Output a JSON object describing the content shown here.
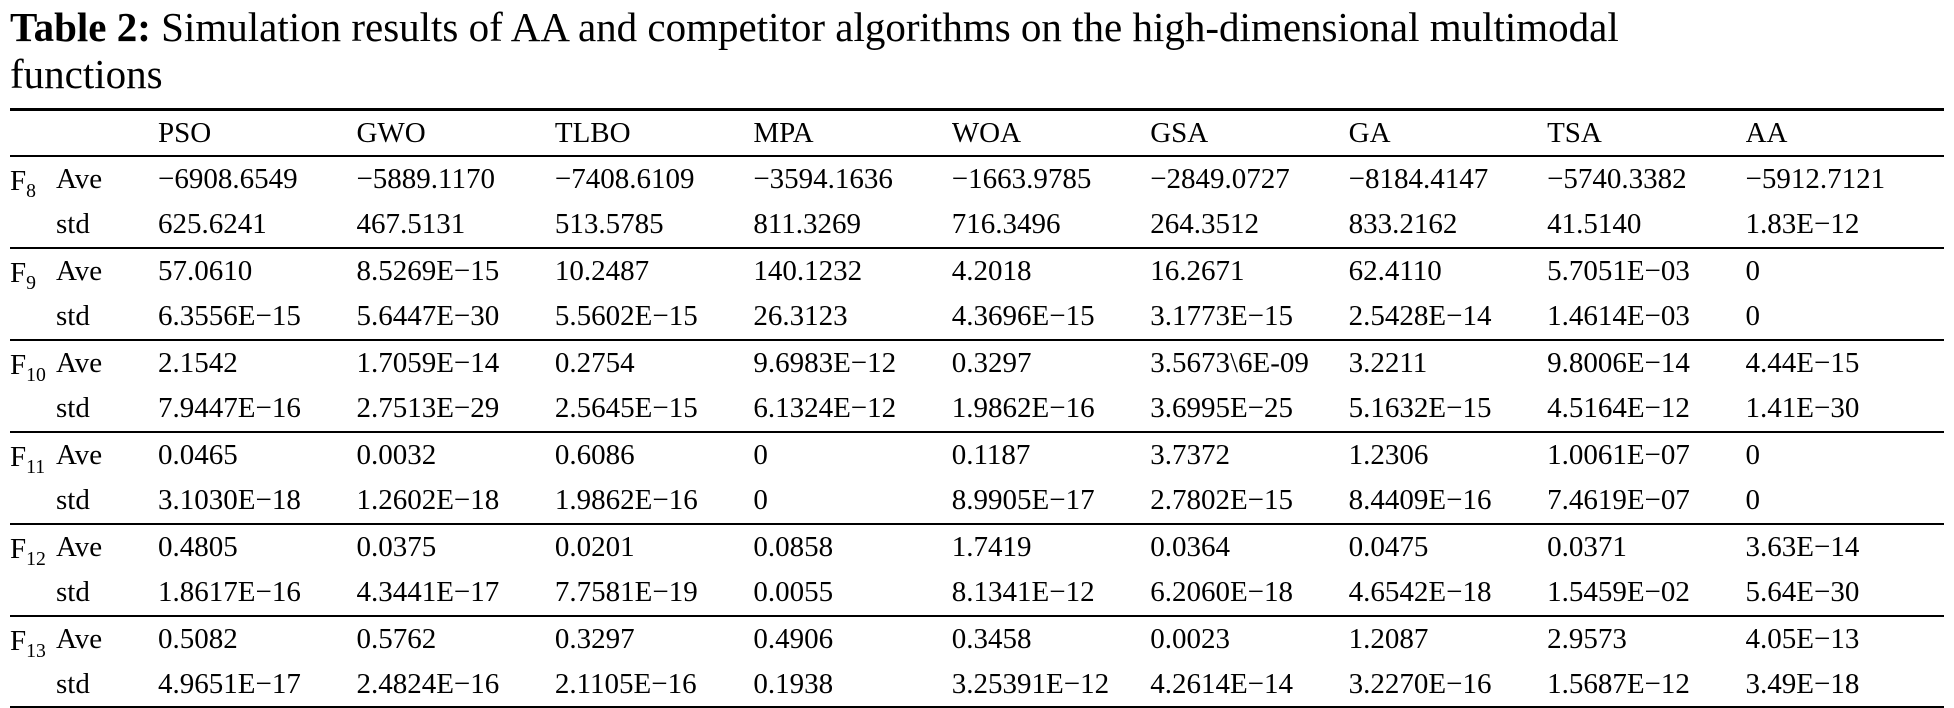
{
  "colors": {
    "text": "#000000",
    "background": "#ffffff",
    "rule": "#000000"
  },
  "caption": {
    "label": "Table 2:",
    "line1": " Simulation results of AA and competitor algorithms on the high-dimensional multimodal",
    "line2": "functions"
  },
  "table": {
    "columns": [
      "PSO",
      "GWO",
      "TLBO",
      "MPA",
      "WOA",
      "GSA",
      "GA",
      "TSA",
      "AA"
    ],
    "groups": [
      {
        "func": "F",
        "sub": "8",
        "rows": [
          {
            "stat": "Ave",
            "values": [
              "−6908.6549",
              "−5889.1170",
              "−7408.6109",
              "−3594.1636",
              "−1663.9785",
              "−2849.0727",
              "−8184.4147",
              "−5740.3382",
              "−5912.7121"
            ]
          },
          {
            "stat": "std",
            "values": [
              "625.6241",
              "467.5131",
              "513.5785",
              "811.3269",
              "716.3496",
              "264.3512",
              "833.2162",
              "41.5140",
              "1.83E−12"
            ]
          }
        ]
      },
      {
        "func": "F",
        "sub": "9",
        "rows": [
          {
            "stat": "Ave",
            "values": [
              "57.0610",
              "8.5269E−15",
              "10.2487",
              "140.1232",
              "4.2018",
              "16.2671",
              "62.4110",
              "5.7051E−03",
              "0"
            ]
          },
          {
            "stat": "std",
            "values": [
              "6.3556E−15",
              "5.6447E−30",
              "5.5602E−15",
              "26.3123",
              "4.3696E−15",
              "3.1773E−15",
              "2.5428E−14",
              "1.4614E−03",
              "0"
            ]
          }
        ]
      },
      {
        "func": "F",
        "sub": "10",
        "rows": [
          {
            "stat": "Ave",
            "values": [
              "2.1542",
              "1.7059E−14",
              "0.2754",
              "9.6983E−12",
              "0.3297",
              "3.5673\\6E-09",
              "3.2211",
              "9.8006E−14",
              "4.44E−15"
            ]
          },
          {
            "stat": "std",
            "values": [
              "7.9447E−16",
              "2.7513E−29",
              "2.5645E−15",
              "6.1324E−12",
              "1.9862E−16",
              "3.6995E−25",
              "5.1632E−15",
              "4.5164E−12",
              "1.41E−30"
            ]
          }
        ]
      },
      {
        "func": "F",
        "sub": "11",
        "rows": [
          {
            "stat": "Ave",
            "values": [
              "0.0465",
              "0.0032",
              "0.6086",
              "0",
              "0.1187",
              "3.7372",
              "1.2306",
              "1.0061E−07",
              "0"
            ]
          },
          {
            "stat": "std",
            "values": [
              "3.1030E−18",
              "1.2602E−18",
              "1.9862E−16",
              "0",
              "8.9905E−17",
              "2.7802E−15",
              "8.4409E−16",
              "7.4619E−07",
              "0"
            ]
          }
        ]
      },
      {
        "func": "F",
        "sub": "12",
        "rows": [
          {
            "stat": "Ave",
            "values": [
              "0.4805",
              "0.0375",
              "0.0201",
              "0.0858",
              "1.7419",
              "0.0364",
              "0.0475",
              "0.0371",
              "3.63E−14"
            ]
          },
          {
            "stat": "std",
            "values": [
              "1.8617E−16",
              "4.3441E−17",
              "7.7581E−19",
              "0.0055",
              "8.1341E−12",
              "6.2060E−18",
              "4.6542E−18",
              "1.5459E−02",
              "5.64E−30"
            ]
          }
        ]
      },
      {
        "func": "F",
        "sub": "13",
        "rows": [
          {
            "stat": "Ave",
            "values": [
              "0.5082",
              "0.5762",
              "0.3297",
              "0.4906",
              "0.3458",
              "0.0023",
              "1.2087",
              "2.9573",
              "4.05E−13"
            ]
          },
          {
            "stat": "std",
            "values": [
              "4.9651E−17",
              "2.4824E−16",
              "2.1105E−16",
              "0.1938",
              "3.25391E−12",
              "4.2614E−14",
              "3.2270E−16",
              "1.5687E−12",
              "3.49E−18"
            ]
          }
        ]
      }
    ]
  }
}
